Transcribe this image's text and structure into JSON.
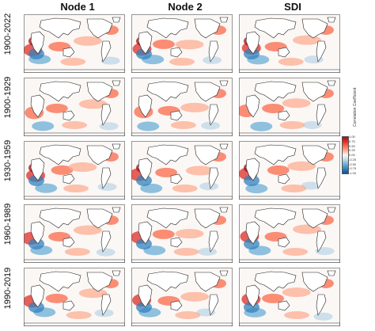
{
  "columns": [
    "Node 1",
    "Node 2",
    "SDI"
  ],
  "rows": [
    "1900-2022",
    "1900-1929",
    "1930-1959",
    "1960-1989",
    "1990-2019"
  ],
  "colorbar": {
    "title": "Correlation Coefficient",
    "ticks": [
      "1.00",
      "0.75",
      "0.50",
      "0.25",
      "0.00",
      "-0.25",
      "-0.50",
      "-0.75",
      "-1.00"
    ],
    "colors": [
      "#a50f15",
      "#de2d26",
      "#fb6a4a",
      "#fcae91",
      "#f7f7f7",
      "#bdd7e7",
      "#6baed6",
      "#3182bd",
      "#08519c"
    ]
  },
  "land_color": "#ffffff",
  "coast_color": "#222222"
}
